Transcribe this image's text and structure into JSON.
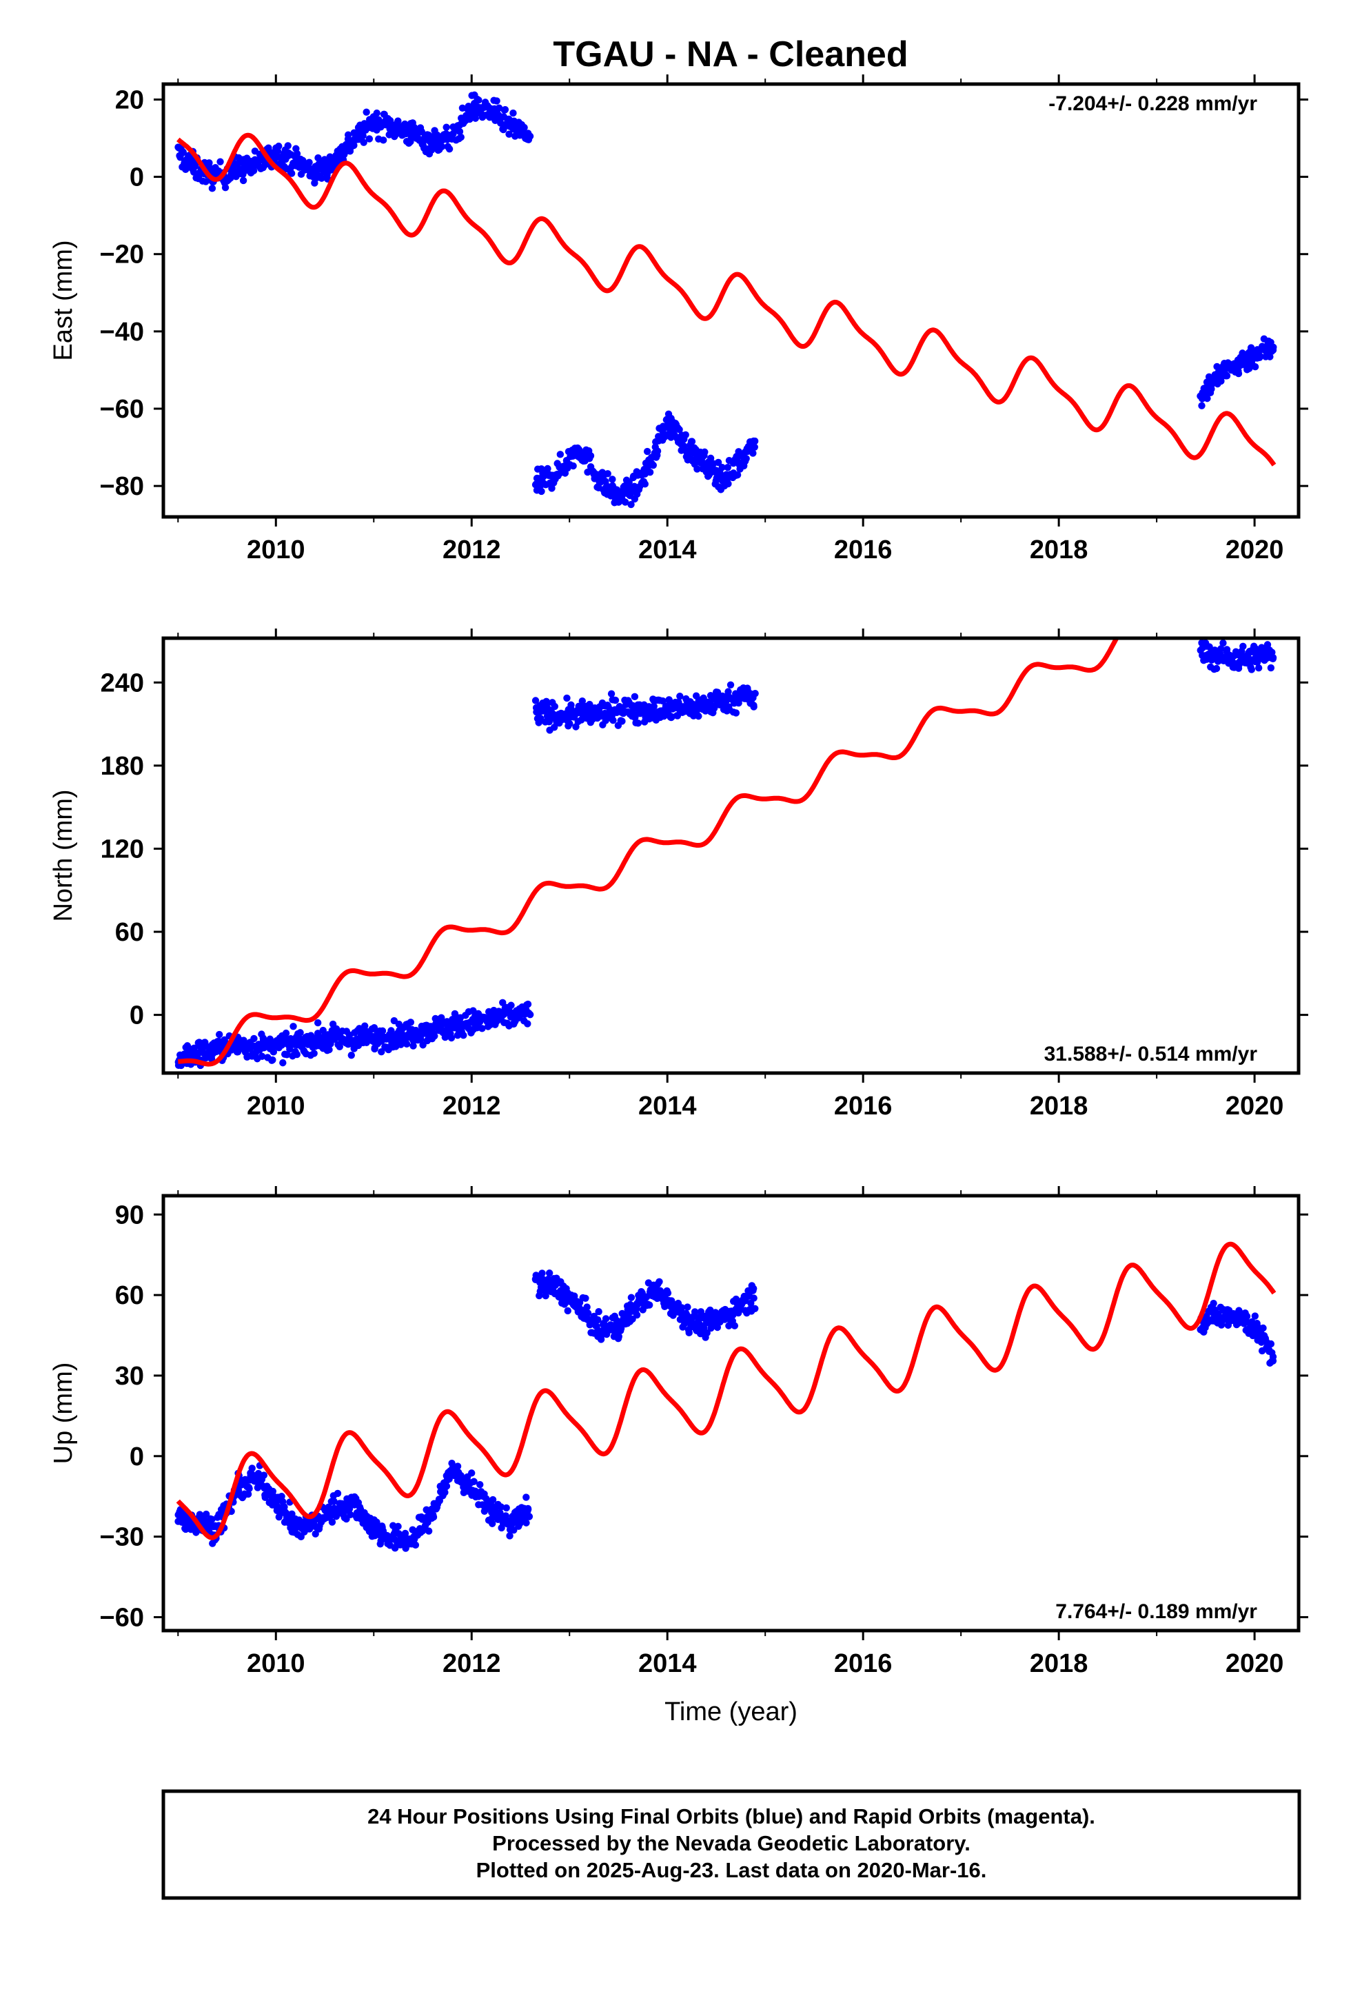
{
  "title": "TGAU  - NA - Cleaned",
  "footer": {
    "lines": [
      "24 Hour Positions Using Final Orbits (blue) and Rapid Orbits (magenta).",
      "Processed by the Nevada Geodetic Laboratory.",
      "Plotted on 2025-Aug-23. Last data on 2020-Mar-16."
    ]
  },
  "colors": {
    "data": "#0000ff",
    "model": "#ff0000",
    "frame": "#000000"
  },
  "chart_data": [
    {
      "type": "scatter",
      "ylabel": "East (mm)",
      "xlabel": "",
      "xlim": [
        2008.85,
        2020.45
      ],
      "ylim": [
        -88,
        24
      ],
      "xticks": [
        2010,
        2012,
        2014,
        2016,
        2018,
        2020
      ],
      "yticks": [
        20,
        0,
        -20,
        -40,
        -60,
        -80
      ],
      "ytick_labels": [
        "20",
        "0",
        "−20",
        "−40",
        "−60",
        "−80"
      ],
      "rate_label": "-7.204+/- 0.228 mm/yr",
      "rate_position": "top-right",
      "grid": false,
      "data_series": [
        {
          "x": [
            2009.0,
            2009.2,
            2009.4,
            2009.6,
            2009.8,
            2010.0,
            2010.2,
            2010.4,
            2010.6,
            2010.8,
            2011.0,
            2011.2,
            2011.4,
            2011.6,
            2011.8,
            2012.0,
            2012.2,
            2012.4,
            2012.6
          ],
          "y": [
            6,
            2,
            0,
            2,
            3,
            6,
            4,
            1,
            4,
            10,
            14,
            13,
            11,
            9,
            10,
            18,
            17,
            13,
            10
          ]
        },
        {
          "x": [
            2012.65,
            2012.9,
            2013.1,
            2013.3,
            2013.5,
            2013.7,
            2013.9,
            2014.0,
            2014.2,
            2014.4,
            2014.6,
            2014.8,
            2014.9
          ],
          "y": [
            -80,
            -76,
            -70,
            -78,
            -83,
            -80,
            -70,
            -63,
            -70,
            -75,
            -78,
            -72,
            -67
          ]
        },
        {
          "x": [
            2019.45,
            2019.6,
            2019.8,
            2020.0,
            2020.2
          ],
          "y": [
            -57,
            -52,
            -49,
            -46,
            -44
          ]
        }
      ],
      "model": {
        "x0": 2009.0,
        "y0": 9,
        "rate_per_yr": -7.2,
        "annual_amp": 6,
        "semiannual_amp": 2,
        "phase": 0.55
      }
    },
    {
      "type": "scatter",
      "ylabel": "North (mm)",
      "xlabel": "",
      "xlim": [
        2008.85,
        2020.45
      ],
      "ylim": [
        -42,
        272
      ],
      "xticks": [
        2010,
        2012,
        2014,
        2016,
        2018,
        2020
      ],
      "yticks": [
        240,
        180,
        120,
        60,
        0
      ],
      "ytick_labels": [
        "240",
        "180",
        "120",
        "60",
        "0"
      ],
      "rate_label": "31.588+/- 0.514 mm/yr",
      "rate_position": "bottom-right",
      "grid": false,
      "data_series": [
        {
          "x": [
            2009.0,
            2009.3,
            2009.6,
            2010.0,
            2010.4,
            2010.8,
            2011.2,
            2011.6,
            2012.0,
            2012.4,
            2012.6
          ],
          "y": [
            -31,
            -26,
            -22,
            -24,
            -18,
            -18,
            -15,
            -10,
            -6,
            -1,
            2
          ]
        },
        {
          "x": [
            2012.65,
            2012.9,
            2013.2,
            2013.6,
            2014.0,
            2014.4,
            2014.8,
            2014.9
          ],
          "y": [
            219,
            216,
            217,
            221,
            220,
            224,
            231,
            226
          ]
        },
        {
          "x": [
            2019.45,
            2019.7,
            2019.9,
            2020.2
          ],
          "y": [
            261,
            258,
            257,
            261
          ]
        }
      ],
      "model": {
        "x0": 2009.0,
        "y0": -35,
        "rate_per_yr": 31.6,
        "annual_amp": 10,
        "semiannual_amp": 3,
        "phase": 0.55
      }
    },
    {
      "type": "scatter",
      "ylabel": "Up (mm)",
      "xlabel": "Time (year)",
      "xlim": [
        2008.85,
        2020.45
      ],
      "ylim": [
        -65,
        97
      ],
      "xticks": [
        2010,
        2012,
        2014,
        2016,
        2018,
        2020
      ],
      "yticks": [
        90,
        60,
        30,
        0,
        -30,
        -60
      ],
      "ytick_labels": [
        "90",
        "60",
        "30",
        "0",
        "−30",
        "−60"
      ],
      "rate_label": "7.764+/- 0.189 mm/yr",
      "rate_position": "bottom-right",
      "grid": false,
      "data_series": [
        {
          "x": [
            2009.0,
            2009.2,
            2009.4,
            2009.6,
            2009.8,
            2010.0,
            2010.2,
            2010.4,
            2010.6,
            2010.8,
            2011.0,
            2011.2,
            2011.4,
            2011.6,
            2011.8,
            2012.0,
            2012.2,
            2012.4,
            2012.6
          ],
          "y": [
            -22,
            -25,
            -27,
            -13,
            -8,
            -16,
            -27,
            -25,
            -19,
            -18,
            -27,
            -31,
            -31,
            -21,
            -5,
            -12,
            -20,
            -25,
            -20
          ]
        },
        {
          "x": [
            2012.65,
            2012.9,
            2013.1,
            2013.3,
            2013.5,
            2013.7,
            2013.9,
            2014.1,
            2014.3,
            2014.5,
            2014.7,
            2014.9
          ],
          "y": [
            65,
            62,
            55,
            47,
            48,
            57,
            62,
            55,
            49,
            50,
            55,
            60
          ]
        },
        {
          "x": [
            2019.45,
            2019.6,
            2019.8,
            2020.0,
            2020.2
          ],
          "y": [
            50,
            52,
            53,
            48,
            36
          ]
        }
      ],
      "model": {
        "x0": 2009.0,
        "y0": -19,
        "rate_per_yr": 7.8,
        "annual_amp": 13,
        "semiannual_amp": 3,
        "phase": 0.55
      }
    }
  ]
}
